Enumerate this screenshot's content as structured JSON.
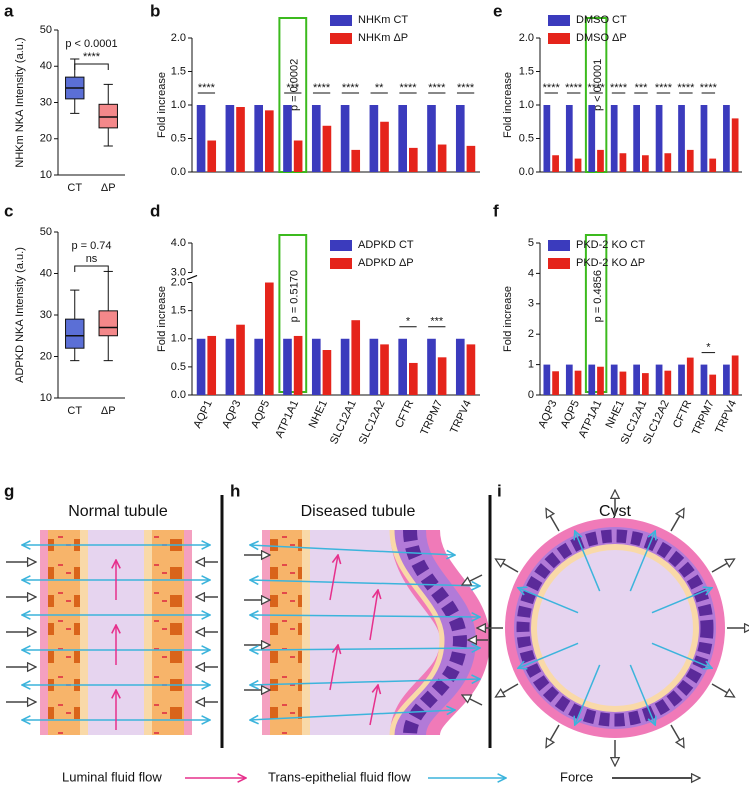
{
  "panel_labels": [
    "a",
    "b",
    "c",
    "d",
    "e",
    "f",
    "g",
    "h",
    "i"
  ],
  "chart_data": [
    {
      "type": "box",
      "ylabel": "NHKm NKA Intensity (a.u.)",
      "categories": [
        "CT",
        "ΔP"
      ],
      "boxes": [
        {
          "min": 27,
          "q1": 31,
          "median": 34,
          "q3": 37,
          "max": 42,
          "color": "#5b6fd6"
        },
        {
          "min": 18,
          "q1": 23,
          "median": 26,
          "q3": 29.5,
          "max": 35,
          "color": "#f4888a"
        }
      ],
      "ylim": [
        10,
        50
      ],
      "yticks": [
        10,
        20,
        30,
        40,
        50
      ],
      "p_value": "p < 0.0001",
      "significance": "****"
    },
    {
      "type": "bar",
      "ylabel": "Fold increase",
      "categories": [
        null,
        null,
        null,
        null,
        null,
        null,
        null,
        null,
        null,
        null
      ],
      "series": [
        {
          "name": "NHKm CT",
          "color": "#3b3bbd",
          "values": [
            1.0,
            1.0,
            1.0,
            1.0,
            1.0,
            1.0,
            1.0,
            1.0,
            1.0,
            1.0
          ]
        },
        {
          "name": "NHKm ΔP",
          "color": "#e5241b",
          "values": [
            0.47,
            0.97,
            0.92,
            0.47,
            0.69,
            0.33,
            0.75,
            0.36,
            0.41,
            0.39
          ]
        }
      ],
      "ylim": [
        0,
        2.0
      ],
      "yticks": [
        {
          "value": 0,
          "label": "0.0"
        },
        {
          "value": 0.5,
          "label": "0.5"
        },
        {
          "value": 1.0,
          "label": "1.0"
        },
        {
          "value": 1.5,
          "label": "1.5"
        },
        {
          "value": 2.0,
          "label": "2.0"
        }
      ],
      "significance": [
        "****",
        null,
        null,
        "***",
        "****",
        "****",
        "**",
        "****",
        "****",
        "****"
      ],
      "p_values": [
        null,
        null,
        null,
        "p = 0.0002",
        null,
        null,
        null,
        null,
        null,
        null
      ],
      "legend": "upper right"
    },
    {
      "type": "box",
      "ylabel": "ADPKD NKA Intensity (a.u.)",
      "categories": [
        "CT",
        "ΔP"
      ],
      "boxes": [
        {
          "min": 19,
          "q1": 22,
          "median": 25,
          "q3": 29,
          "max": 36,
          "color": "#5b6fd6"
        },
        {
          "min": 19,
          "q1": 25,
          "median": 27,
          "q3": 31,
          "max": 40.5,
          "color": "#f4888a"
        }
      ],
      "ylim": [
        10,
        50
      ],
      "yticks": [
        10,
        20,
        30,
        40,
        50
      ],
      "p_value": "p = 0.74",
      "significance": "ns"
    },
    {
      "type": "bar",
      "ylabel": "Fold increase",
      "categories": [
        "AQP1",
        "AQP3",
        "AQP5",
        "ATP1A1",
        "NHE1",
        "SLC12A1",
        "SLC12A2",
        "CFTR",
        "TRPM7",
        "TRPV4"
      ],
      "series": [
        {
          "name": "ADPKD CT",
          "color": "#3b3bbd",
          "values": [
            1.0,
            1.0,
            1.0,
            1.0,
            1.0,
            1.0,
            1.0,
            1.0,
            1.0,
            1.0
          ]
        },
        {
          "name": "ADPKD ΔP",
          "color": "#e5241b",
          "values": [
            1.05,
            1.25,
            2.0,
            1.05,
            0.8,
            1.33,
            0.9,
            0.57,
            0.67,
            0.9
          ]
        }
      ],
      "ylim": [
        0,
        4.0
      ],
      "axis_break": [
        2.0,
        3.0
      ],
      "yticks": [
        {
          "value": 0,
          "label": "0.0"
        },
        {
          "value": 0.5,
          "label": "0.5"
        },
        {
          "value": 1.0,
          "label": "1.0"
        },
        {
          "value": 1.5,
          "label": "1.5"
        },
        {
          "value": 2.0,
          "label": "2.0"
        },
        {
          "value": 3.0,
          "label": "3.0"
        },
        {
          "value": 4.0,
          "label": "4.0"
        }
      ],
      "significance": [
        null,
        null,
        null,
        null,
        null,
        null,
        null,
        "*",
        "***",
        null
      ],
      "p_values": [
        null,
        null,
        null,
        "p = 0.5170",
        null,
        null,
        null,
        null,
        null,
        null
      ],
      "legend": "upper right"
    },
    {
      "type": "bar",
      "ylabel": "Fold increase",
      "categories": [
        null,
        null,
        null,
        null,
        null,
        null,
        null,
        null,
        null
      ],
      "series": [
        {
          "name": "DMSO CT",
          "color": "#3b3bbd",
          "values": [
            1.0,
            1.0,
            1.0,
            1.0,
            1.0,
            1.0,
            1.0,
            1.0,
            1.0
          ]
        },
        {
          "name": "DMSO ΔP",
          "color": "#e5241b",
          "values": [
            0.25,
            0.2,
            0.33,
            0.28,
            0.25,
            0.28,
            0.33,
            0.2,
            0.8
          ]
        }
      ],
      "ylim": [
        0,
        2.0
      ],
      "yticks": [
        {
          "value": 0,
          "label": "0.0"
        },
        {
          "value": 0.5,
          "label": "0.5"
        },
        {
          "value": 1.0,
          "label": "1.0"
        },
        {
          "value": 1.5,
          "label": "1.5"
        },
        {
          "value": 2.0,
          "label": "2.0"
        }
      ],
      "significance": [
        "****",
        "****",
        "****",
        "****",
        "***",
        "****",
        "****",
        "****",
        null
      ],
      "p_values": [
        null,
        null,
        "p < 0.0001",
        null,
        null,
        null,
        null,
        null,
        null
      ],
      "legend": "upper right"
    },
    {
      "type": "bar",
      "ylabel": "Fold increase",
      "categories": [
        "AQP3",
        "AQP5",
        "ATP1A1",
        "NHE1",
        "SLC12A1",
        "SLC12A2",
        "CFTR",
        "TRPM7",
        "TRPV4"
      ],
      "series": [
        {
          "name": "PKD-2 KO CT",
          "color": "#3b3bbd",
          "values": [
            1.0,
            1.0,
            1.0,
            1.0,
            1.0,
            1.0,
            1.0,
            1.0,
            1.0
          ]
        },
        {
          "name": "PKD-2 KO ΔP",
          "color": "#e5241b",
          "values": [
            0.78,
            0.8,
            0.93,
            0.77,
            0.72,
            0.8,
            1.23,
            0.67,
            1.3
          ]
        }
      ],
      "ylim": [
        0,
        5
      ],
      "yticks": [
        0,
        1,
        2,
        3,
        4,
        5
      ],
      "significance": [
        null,
        null,
        null,
        null,
        null,
        null,
        null,
        "*",
        null
      ],
      "p_values": [
        null,
        null,
        "p = 0.4856",
        null,
        null,
        null,
        null,
        null,
        null
      ],
      "legend": "upper right"
    }
  ],
  "diagrams": [
    {
      "title": "Normal tubule"
    },
    {
      "title": "Diseased tubule"
    },
    {
      "title": "Cyst"
    }
  ],
  "legend": [
    "Luminal fluid flow",
    "Trans-epithelial fluid flow",
    "Force"
  ]
}
